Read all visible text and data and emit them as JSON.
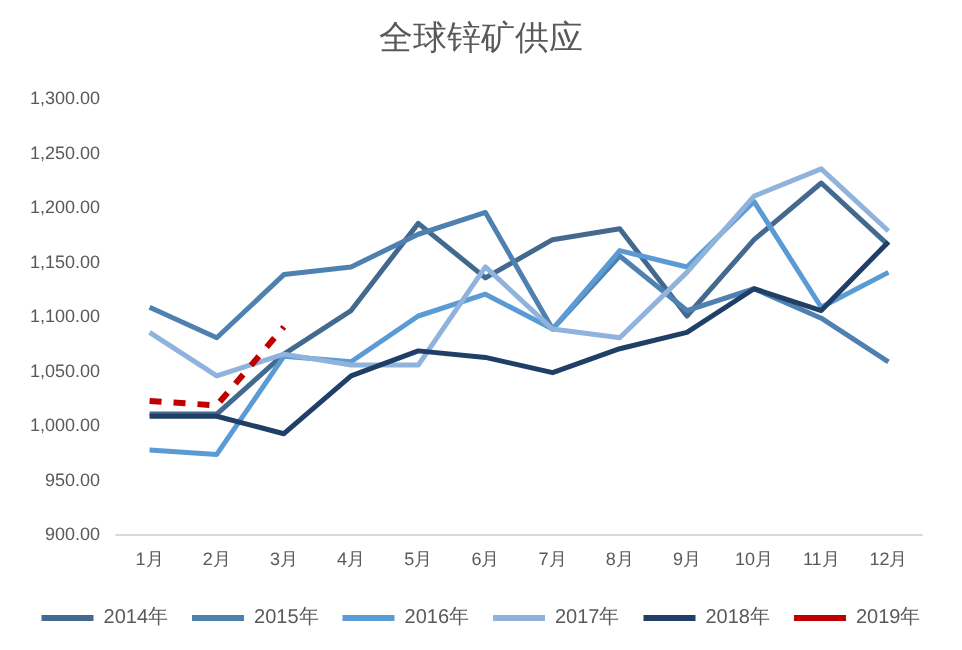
{
  "chart_data": {
    "type": "line",
    "title": "全球锌矿供应",
    "categories": [
      "1月",
      "2月",
      "3月",
      "4月",
      "5月",
      "6月",
      "7月",
      "8月",
      "9月",
      "10月",
      "11月",
      "12月"
    ],
    "series": [
      {
        "name": "2014年",
        "color": "#44698f",
        "values": [
          1010,
          1010,
          1065,
          1105,
          1185,
          1135,
          1170,
          1180,
          1100,
          1170,
          1222,
          1165
        ]
      },
      {
        "name": "2015年",
        "color": "#4f81b0",
        "values": [
          1108,
          1080,
          1138,
          1145,
          1175,
          1195,
          1088,
          1155,
          1105,
          1125,
          1098,
          1058
        ]
      },
      {
        "name": "2016年",
        "color": "#5b9bd5",
        "values": [
          977,
          973,
          1063,
          1058,
          1100,
          1120,
          1088,
          1160,
          1145,
          1205,
          1108,
          1140
        ]
      },
      {
        "name": "2017年",
        "color": "#8fb3dc",
        "values": [
          1085,
          1045,
          1065,
          1055,
          1055,
          1145,
          1088,
          1080,
          1140,
          1210,
          1235,
          1178
        ]
      },
      {
        "name": "2018年",
        "color": "#1f3f66",
        "values": [
          1008,
          1008,
          992,
          1045,
          1068,
          1062,
          1048,
          1070,
          1085,
          1125,
          1105,
          1168
        ]
      },
      {
        "name": "2019年",
        "color": "#c00000",
        "line_style": "dashed",
        "values": [
          1022,
          1018,
          1090,
          null,
          null,
          null,
          null,
          null,
          null,
          null,
          null,
          null
        ]
      }
    ],
    "ylim": [
      900,
      1300
    ],
    "yticks": [
      {
        "value": 900,
        "label": "900.00"
      },
      {
        "value": 950,
        "label": "950.00"
      },
      {
        "value": 1000,
        "label": "1,000.00"
      },
      {
        "value": 1050,
        "label": "1,050.00"
      },
      {
        "value": 1100,
        "label": "1,100.00"
      },
      {
        "value": 1150,
        "label": "1,150.00"
      },
      {
        "value": 1200,
        "label": "1,200.00"
      },
      {
        "value": 1250,
        "label": "1,250.00"
      },
      {
        "value": 1300,
        "label": "1,300.00"
      }
    ],
    "grid": false,
    "legend": "bottom",
    "marker": "none"
  }
}
